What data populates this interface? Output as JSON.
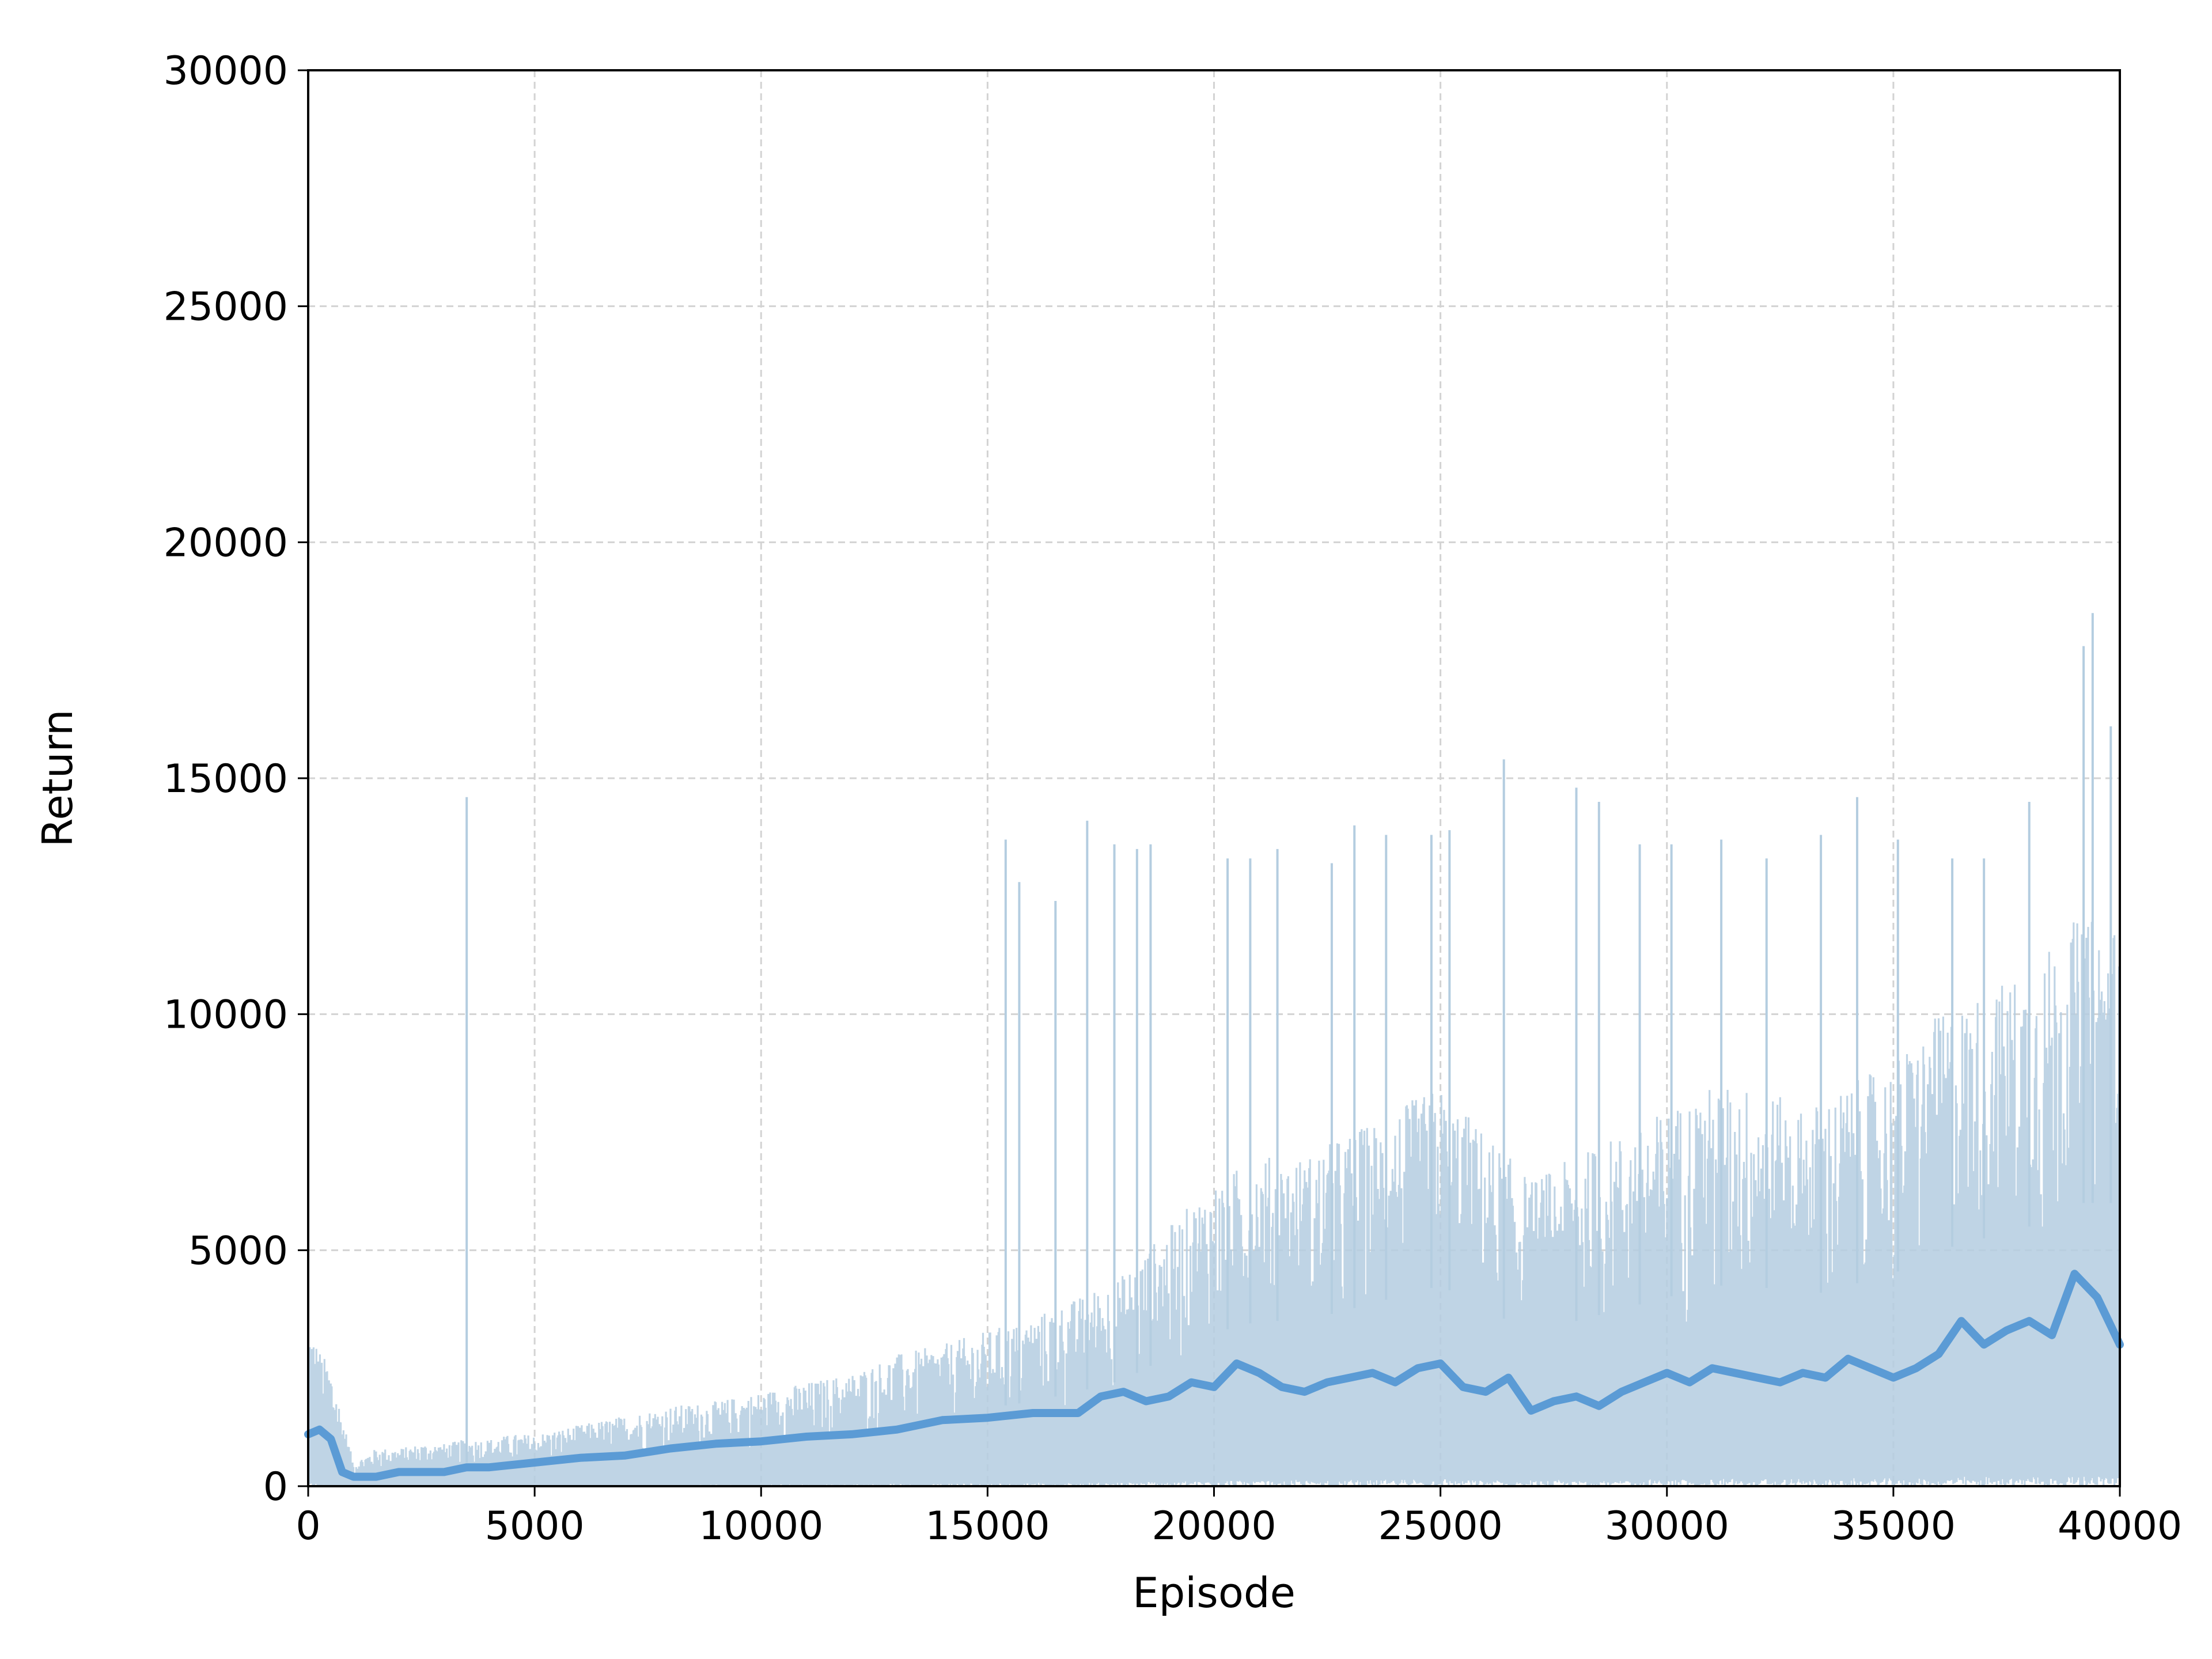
{
  "chart_data": {
    "type": "line",
    "title": "",
    "xlabel": "Episode",
    "ylabel": "Return",
    "xlim": [
      0,
      40000
    ],
    "ylim": [
      0,
      30000
    ],
    "x_ticks": [
      "0",
      "5000",
      "10000",
      "15000",
      "20000",
      "25000",
      "30000",
      "35000",
      "40000"
    ],
    "y_ticks": [
      "0",
      "5000",
      "10000",
      "15000",
      "20000",
      "25000",
      "30000"
    ],
    "grid": true,
    "legend": "none",
    "colors": {
      "raw": "#b4cde0",
      "smoothed": "#5b9bd5",
      "grid": "#d3d3d3",
      "axes": "#000000"
    },
    "series": [
      {
        "role": "raw returns (noisy, upper envelope)",
        "x": [
          0,
          250,
          500,
          1000,
          1500,
          2000,
          2500,
          3000,
          3500,
          4000,
          4500,
          5000,
          5500,
          6000,
          7000,
          8000,
          9000,
          10000,
          11000,
          12000,
          13000,
          14000,
          15000,
          16000,
          17000,
          18000,
          19000,
          20000,
          21000,
          22000,
          23000,
          24000,
          25000,
          26000,
          27000,
          28000,
          29000,
          30000,
          31000,
          32000,
          33000,
          34000,
          35000,
          36000,
          37000,
          38000,
          39000,
          40000
        ],
        "y": [
          3500,
          2900,
          2500,
          500,
          800,
          800,
          900,
          900,
          1000,
          1000,
          1100,
          1100,
          1200,
          1300,
          1500,
          1700,
          1800,
          2000,
          2200,
          2400,
          2800,
          3000,
          3300,
          3600,
          4000,
          4500,
          5500,
          6500,
          7000,
          7000,
          7500,
          8000,
          8500,
          7500,
          6500,
          7000,
          7500,
          8000,
          8500,
          8500,
          8000,
          8500,
          9000,
          10000,
          10500,
          11000,
          12000,
          12000
        ],
        "spikes": [
          [
            3500,
            14600
          ],
          [
            15400,
            13700
          ],
          [
            15700,
            12800
          ],
          [
            16500,
            12400
          ],
          [
            17200,
            14100
          ],
          [
            17800,
            13600
          ],
          [
            18300,
            13500
          ],
          [
            18600,
            13600
          ],
          [
            20300,
            13300
          ],
          [
            20800,
            13300
          ],
          [
            21400,
            13500
          ],
          [
            22600,
            13200
          ],
          [
            23100,
            14000
          ],
          [
            23800,
            13800
          ],
          [
            24800,
            13800
          ],
          [
            25200,
            13900
          ],
          [
            26400,
            15400
          ],
          [
            28000,
            14800
          ],
          [
            28500,
            14500
          ],
          [
            29400,
            13600
          ],
          [
            30100,
            13600
          ],
          [
            31200,
            13700
          ],
          [
            32200,
            13300
          ],
          [
            33400,
            13800
          ],
          [
            34200,
            14600
          ],
          [
            35100,
            13700
          ],
          [
            36300,
            13300
          ],
          [
            37000,
            13300
          ],
          [
            38000,
            14500
          ],
          [
            39200,
            17800
          ],
          [
            39400,
            18500
          ],
          [
            39800,
            16100
          ],
          [
            40000,
            14200
          ]
        ]
      },
      {
        "role": "smoothed return (moving average)",
        "x": [
          0,
          250,
          500,
          750,
          1000,
          1500,
          2000,
          2500,
          3000,
          3500,
          4000,
          5000,
          6000,
          7000,
          8000,
          9000,
          10000,
          11000,
          12000,
          13000,
          14000,
          15000,
          16000,
          17000,
          17500,
          18000,
          18500,
          19000,
          19500,
          20000,
          20500,
          21000,
          21500,
          22000,
          22500,
          23000,
          23500,
          24000,
          24500,
          25000,
          25500,
          26000,
          26500,
          27000,
          27500,
          28000,
          28500,
          29000,
          29500,
          30000,
          30500,
          31000,
          31500,
          32000,
          32500,
          33000,
          33500,
          34000,
          34500,
          35000,
          35500,
          36000,
          36500,
          37000,
          37500,
          38000,
          38500,
          39000,
          39500,
          40000
        ],
        "y": [
          1100,
          1200,
          1000,
          300,
          200,
          200,
          300,
          300,
          300,
          400,
          400,
          500,
          600,
          650,
          800,
          900,
          950,
          1050,
          1100,
          1200,
          1400,
          1450,
          1550,
          1550,
          1900,
          2000,
          1800,
          1900,
          2200,
          2100,
          2600,
          2400,
          2100,
          2000,
          2200,
          2300,
          2400,
          2200,
          2500,
          2600,
          2100,
          2000,
          2300,
          1600,
          1800,
          1900,
          1700,
          2000,
          2200,
          2400,
          2200,
          2500,
          2400,
          2300,
          2200,
          2400,
          2300,
          2700,
          2500,
          2300,
          2500,
          2800,
          3500,
          3000,
          3300,
          3500,
          3200,
          4500,
          4000,
          3000
        ]
      }
    ]
  }
}
